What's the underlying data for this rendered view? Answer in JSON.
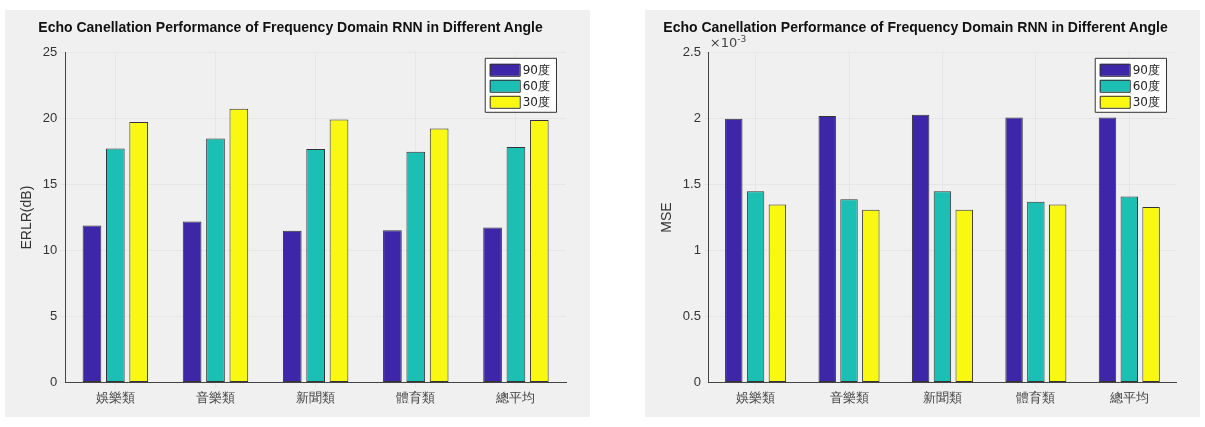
{
  "chart_data": [
    {
      "type": "bar",
      "title": "Echo Canellation Performance of Frequency Domain RNN in Different Angle",
      "ylabel": "ERLR(dB)",
      "categories": [
        "娛樂類",
        "音樂類",
        "新聞類",
        "體育類",
        "總平均"
      ],
      "series": [
        {
          "name": "90度",
          "color": "#3e26a8",
          "values": [
            11.9,
            12.2,
            11.5,
            11.55,
            11.75
          ]
        },
        {
          "name": "60度",
          "color": "#1bbfb4",
          "values": [
            17.75,
            18.5,
            17.7,
            17.5,
            17.85
          ]
        },
        {
          "name": "30度",
          "color": "#f8f810",
          "values": [
            19.75,
            20.75,
            19.95,
            19.25,
            19.9
          ]
        }
      ],
      "ylim": [
        0,
        25
      ],
      "yticks": [
        0,
        5,
        10,
        15,
        20,
        25
      ],
      "grid": true,
      "legend": "top right"
    },
    {
      "type": "bar",
      "title": "Echo Canellation Performance of Frequency Domain RNN in Different Angle",
      "ylabel": "MSE",
      "annotations": [
        "×10$^{-3}$"
      ],
      "categories": [
        "娛樂類",
        "音樂類",
        "新聞類",
        "體育類",
        "總平均"
      ],
      "series": [
        {
          "name": "90度",
          "color": "#3e26a8",
          "values": [
            2.0,
            2.02,
            2.03,
            2.01,
            2.01
          ]
        },
        {
          "name": "60度",
          "color": "#1bbfb4",
          "values": [
            1.45,
            1.39,
            1.45,
            1.37,
            1.41
          ]
        },
        {
          "name": "30度",
          "color": "#f8f810",
          "values": [
            1.35,
            1.31,
            1.31,
            1.35,
            1.33
          ]
        }
      ],
      "ylim": [
        0,
        2.5
      ],
      "yticks": [
        0,
        0.5,
        1,
        1.5,
        2,
        2.5
      ],
      "grid": true,
      "legend": "top right"
    }
  ]
}
